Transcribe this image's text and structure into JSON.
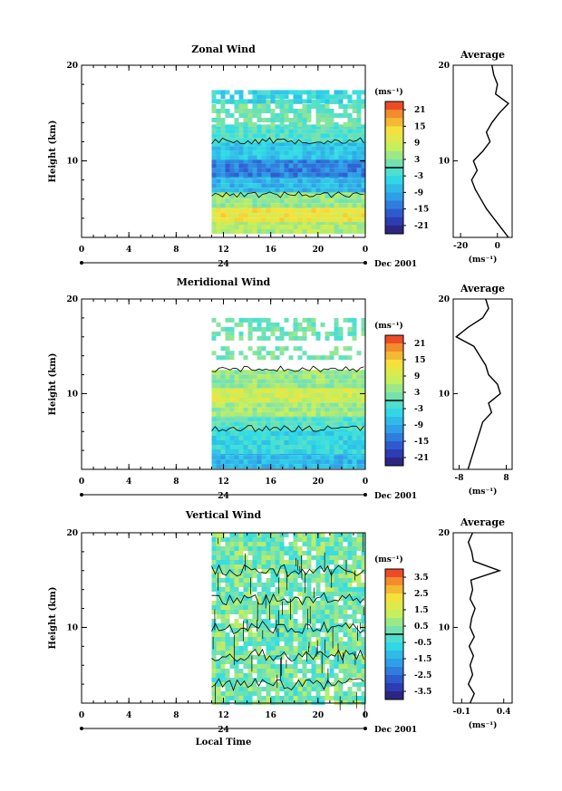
{
  "figure": {
    "date_label": "Dec 2001",
    "x_axis_label": "Local Time",
    "y_axis_label": "Height (km)",
    "average_title": "Average",
    "colorbar_unit": "(ms⁻¹)",
    "profile_unit": "(ms⁻¹)",
    "time_ticks": [
      "0",
      "4",
      "8",
      "12",
      "16",
      "20",
      "0"
    ],
    "day_marker": "24",
    "height_ticks": [
      "10",
      "20"
    ]
  },
  "chart_data": [
    {
      "type": "heatmap",
      "title": "Zonal Wind",
      "xlabel": "",
      "ylabel": "Height (km)",
      "x_range_hours": [
        0,
        24
      ],
      "data_start_hour": 11,
      "ylim_km": [
        2,
        20
      ],
      "colorbar_ticks": [
        "21",
        "15",
        "9",
        "3",
        "-3",
        "-9",
        "-15",
        "-21"
      ],
      "colorbar_range": [
        -24,
        24
      ],
      "zero_line_value": 0,
      "mean_profile": {
        "height_km": [
          2,
          3,
          4,
          5,
          6,
          7,
          8,
          9,
          10,
          11,
          12,
          13,
          14,
          15,
          16,
          17,
          18,
          19,
          20
        ],
        "wind": [
          6,
          2,
          -2,
          -6,
          -9,
          -12,
          -14,
          -11,
          -13,
          -8,
          -4,
          -6,
          -3,
          1,
          6,
          -1,
          0,
          -2,
          -3
        ],
        "xticks": [
          "-20",
          "0"
        ],
        "xlim": [
          -24,
          8
        ]
      },
      "bands": [
        {
          "from_km": 2.5,
          "to_km": 3.8,
          "value": 6
        },
        {
          "from_km": 3.8,
          "to_km": 5.5,
          "value": 12
        },
        {
          "from_km": 5.5,
          "to_km": 7.0,
          "value": 4
        },
        {
          "from_km": 7.0,
          "to_km": 8.6,
          "value": -8
        },
        {
          "from_km": 8.6,
          "to_km": 10.2,
          "value": -13
        },
        {
          "from_km": 10.2,
          "to_km": 12.0,
          "value": -6
        },
        {
          "from_km": 12.0,
          "to_km": 13.8,
          "value": -1
        },
        {
          "from_km": 13.8,
          "to_km": 16.4,
          "value": 1
        },
        {
          "from_km": 16.4,
          "to_km": 17.4,
          "value": -4
        }
      ]
    },
    {
      "type": "heatmap",
      "title": "Meridional Wind",
      "xlabel": "",
      "ylabel": "Height (km)",
      "x_range_hours": [
        0,
        24
      ],
      "data_start_hour": 11,
      "ylim_km": [
        2,
        20
      ],
      "colorbar_ticks": [
        "21",
        "15",
        "9",
        "3",
        "-3",
        "-9",
        "-15",
        "-21"
      ],
      "colorbar_range": [
        -24,
        24
      ],
      "zero_line_value": 0,
      "mean_profile": {
        "height_km": [
          2,
          3,
          4,
          5,
          6,
          7,
          8,
          9,
          10,
          11,
          12,
          13,
          14,
          15,
          16,
          17,
          18,
          19,
          20
        ],
        "wind": [
          -5,
          -4,
          -3,
          -2,
          -1,
          0,
          3,
          2,
          6,
          5,
          2,
          1,
          -1,
          -3,
          -9,
          -5,
          0,
          2,
          1
        ],
        "xticks": [
          "-8",
          "8"
        ],
        "xlim": [
          -10,
          10
        ]
      },
      "bands": [
        {
          "from_km": 2.2,
          "to_km": 4.0,
          "value": -8
        },
        {
          "from_km": 4.0,
          "to_km": 6.5,
          "value": -4
        },
        {
          "from_km": 6.5,
          "to_km": 8.0,
          "value": -1
        },
        {
          "from_km": 8.0,
          "to_km": 9.5,
          "value": 5
        },
        {
          "from_km": 9.5,
          "to_km": 11.0,
          "value": 9
        },
        {
          "from_km": 11.0,
          "to_km": 12.5,
          "value": 4
        },
        {
          "from_km": 14.0,
          "to_km": 15.0,
          "value": 2
        },
        {
          "from_km": 16.0,
          "to_km": 18.0,
          "value": 1
        }
      ]
    },
    {
      "type": "heatmap",
      "title": "Vertical Wind",
      "xlabel": "Local Time",
      "ylabel": "Height (km)",
      "x_range_hours": [
        0,
        24
      ],
      "data_start_hour": 11,
      "ylim_km": [
        2,
        20
      ],
      "colorbar_ticks": [
        "3.5",
        "2.5",
        "1.5",
        "0.5",
        "-0.5",
        "-1.5",
        "-2.5",
        "-3.5"
      ],
      "colorbar_range": [
        -4,
        4
      ],
      "zero_line_value": 0,
      "mean_profile": {
        "height_km": [
          2,
          3,
          4,
          5,
          6,
          7,
          8,
          9,
          10,
          11,
          12,
          13,
          14,
          15,
          16,
          17,
          18,
          19,
          20
        ],
        "wind": [
          0.0,
          0.05,
          -0.02,
          0.03,
          0.0,
          0.04,
          -0.01,
          0.05,
          0.0,
          0.02,
          0.06,
          0.0,
          0.03,
          0.01,
          0.35,
          0.04,
          0.02,
          -0.02,
          0.03
        ],
        "xticks": [
          "-0.1",
          "0.4"
        ],
        "xlim": [
          -0.2,
          0.5
        ]
      },
      "bands": [
        {
          "from_km": 2.0,
          "to_km": 20.0,
          "value": 0.3
        }
      ]
    }
  ]
}
